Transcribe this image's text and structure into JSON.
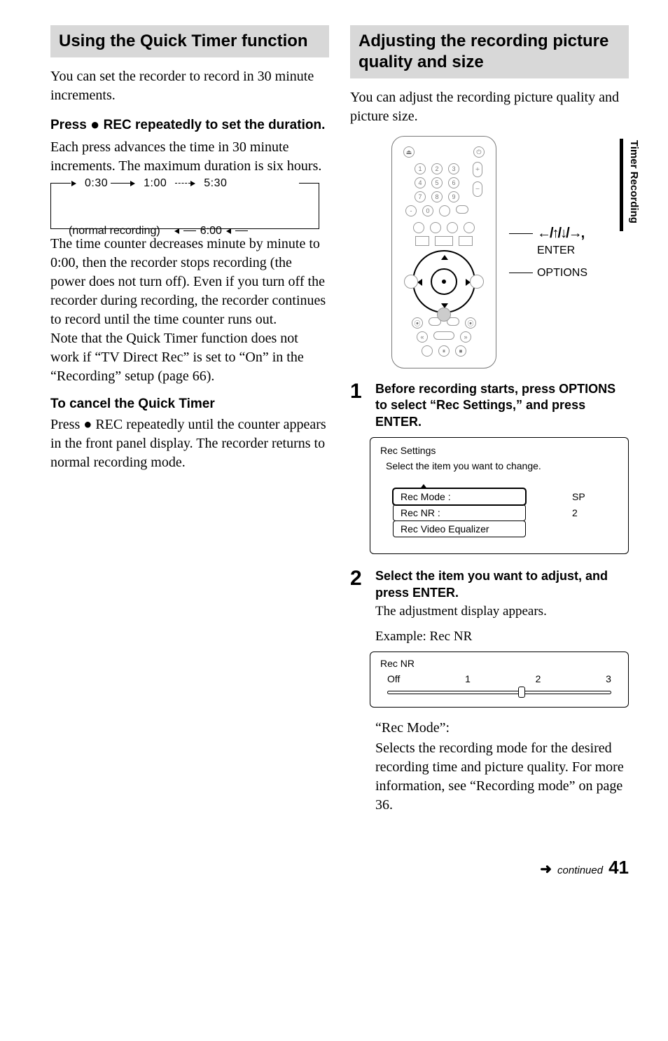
{
  "sidetab": "Timer Recording",
  "left": {
    "section_title": "Using the Quick Timer function",
    "intro": "You can set the recorder to record in 30 minute increments.",
    "press_heading_a": "Press ",
    "press_heading_b": " REC repeatedly to set the duration.",
    "press_body": "Each press advances the time in 30 minute increments. The maximum duration is six hours.",
    "diagram": {
      "t1": "0:30",
      "t2": "1:00",
      "t3": "5:30",
      "t4": "6:00",
      "normal": "(normal recording)"
    },
    "mid_body": "The time counter decreases minute by minute to 0:00, then the recorder stops recording (the power does not turn off). Even if you turn off the recorder during recording, the recorder continues to record until the time counter runs out.\nNote that the Quick Timer function does not work if “TV Direct Rec” is set to “On” in the “Recording” setup (page 66).",
    "cancel_heading": "To cancel the Quick Timer",
    "cancel_body_a": "Press ",
    "cancel_body_b": " REC repeatedly until the counter appears in the front panel display. The recorder returns to normal recording mode."
  },
  "right": {
    "section_title": "Adjusting the recording picture quality and size",
    "intro": "You can adjust the recording picture quality and picture size.",
    "remote_labels": {
      "arrows": "←/↑/↓/→,",
      "enter": "ENTER",
      "options": "OPTIONS"
    },
    "step1": "Before recording starts, press OPTIONS to select “Rec Settings,” and press ENTER.",
    "panel": {
      "title": "Rec Settings",
      "hint": "Select the item you want to change.",
      "rows": [
        {
          "label": "Rec Mode :",
          "value": "SP",
          "selected": true
        },
        {
          "label": "Rec NR :",
          "value": "2",
          "selected": false
        },
        {
          "label": "Rec Video Equalizer",
          "value": "",
          "selected": false
        }
      ]
    },
    "step2_h": "Select the item you want to adjust, and press ENTER.",
    "step2_p": "The adjustment display appears.",
    "example": "Example: Rec NR",
    "nr": {
      "title": "Rec NR",
      "marks": [
        "Off",
        "1",
        "2",
        "3"
      ],
      "pos_pct": 60
    },
    "recmode_h": "“Rec Mode”:",
    "recmode_p": "Selects the recording mode for the desired recording time and picture quality. For more information, see “Recording mode” on page 36."
  },
  "footer": {
    "continued": "continued",
    "page": "41"
  }
}
